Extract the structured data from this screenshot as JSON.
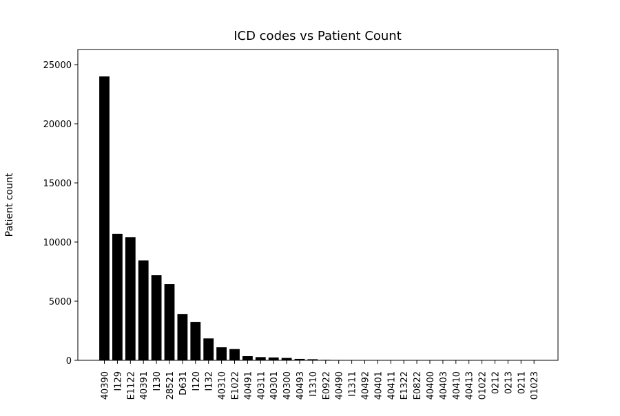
{
  "chart_data": {
    "type": "bar",
    "title": "ICD codes vs Patient Count",
    "xlabel": "",
    "ylabel": "Patient count",
    "ylim": [
      0,
      25000
    ],
    "yticks": [
      0,
      5000,
      10000,
      15000,
      20000,
      25000
    ],
    "grid": false,
    "bar_color": "#000000",
    "categories": [
      "40390",
      "I129",
      "E1122",
      "40391",
      "I130",
      "28521",
      "D631",
      "I120",
      "I132",
      "40310",
      "E1022",
      "40491",
      "40311",
      "40301",
      "40300",
      "40493",
      "I1310",
      "E0922",
      "40490",
      "I1311",
      "40492",
      "40401",
      "40411",
      "E1322",
      "E0822",
      "40400",
      "40403",
      "40410",
      "40413",
      "01022",
      "0212",
      "0213",
      "0211",
      "01023"
    ],
    "values": [
      24000,
      10700,
      10400,
      8450,
      7200,
      6450,
      3900,
      3250,
      1850,
      1100,
      950,
      350,
      270,
      240,
      200,
      120,
      90,
      40,
      30,
      20,
      15,
      12,
      10,
      8,
      6,
      5,
      4,
      3,
      3,
      2,
      2,
      2,
      1,
      1
    ]
  }
}
